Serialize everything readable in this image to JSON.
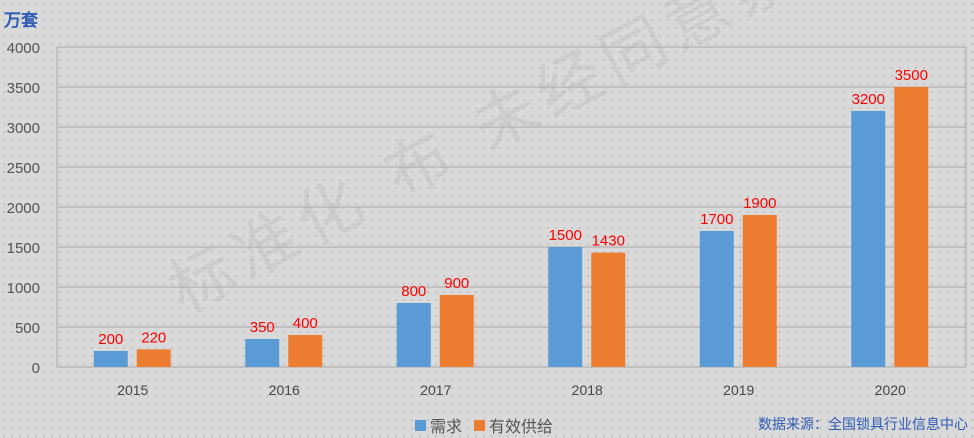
{
  "watermark": "标准化…布 未经同意禁止",
  "unit_label": "万套",
  "source": "数据来源：全国锁具行业信息中心",
  "colors": {
    "demand": "#5b9bd5",
    "supply": "#ed7d31",
    "label": "#ff0000"
  },
  "chart_data": {
    "type": "bar",
    "title": "",
    "ylabel": "万套",
    "xlabel": "",
    "categories": [
      "2015",
      "2016",
      "2017",
      "2018",
      "2019",
      "2020"
    ],
    "series": [
      {
        "name": "需求",
        "values": [
          200,
          350,
          800,
          1500,
          1700,
          3200
        ]
      },
      {
        "name": "有效供给",
        "values": [
          220,
          400,
          900,
          1430,
          1900,
          3500
        ]
      }
    ],
    "ylim": [
      0,
      4000
    ],
    "yticks": [
      0,
      500,
      1000,
      1500,
      2000,
      2500,
      3000,
      3500,
      4000
    ],
    "grid": true,
    "legend": "bottom"
  }
}
